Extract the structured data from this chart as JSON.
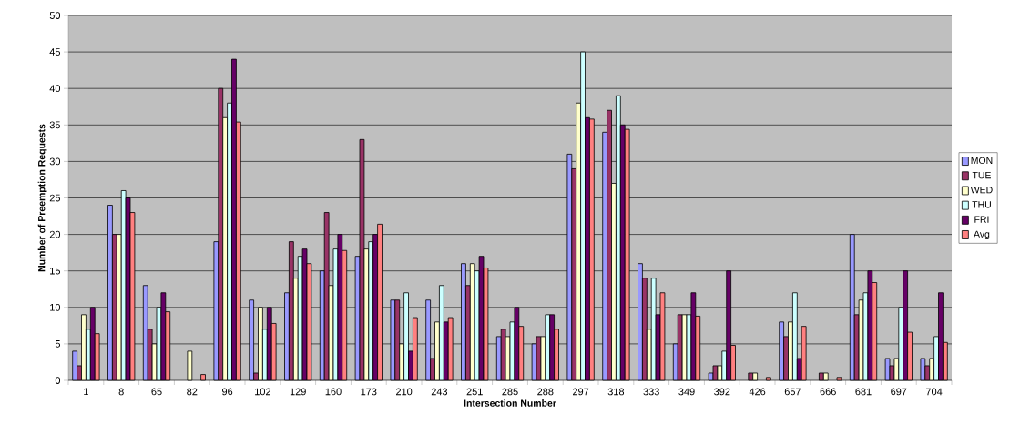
{
  "chart_data": {
    "type": "bar",
    "xlabel": "Intersection Number",
    "ylabel": "Number of Preemption Requests",
    "categories": [
      "1",
      "8",
      "65",
      "82",
      "96",
      "102",
      "129",
      "160",
      "173",
      "210",
      "243",
      "251",
      "285",
      "288",
      "297",
      "318",
      "333",
      "349",
      "392",
      "426",
      "657",
      "666",
      "681",
      "697",
      "704"
    ],
    "series": [
      {
        "name": "MON",
        "color": "#9999ff",
        "values": [
          4,
          24,
          13,
          null,
          19,
          11,
          12,
          15,
          17,
          11,
          11,
          16,
          6,
          5,
          31,
          34,
          16,
          5,
          1,
          null,
          8,
          null,
          20,
          3,
          3
        ]
      },
      {
        "name": "TUE",
        "color": "#993366",
        "values": [
          2,
          20,
          7,
          null,
          40,
          1,
          19,
          23,
          33,
          11,
          3,
          13,
          7,
          6,
          29,
          37,
          14,
          9,
          2,
          1,
          6,
          1,
          9,
          2,
          2
        ]
      },
      {
        "name": "WED",
        "color": "#ffffcc",
        "values": [
          9,
          20,
          5,
          4,
          36,
          10,
          14,
          13,
          18,
          5,
          8,
          16,
          6,
          6,
          38,
          27,
          7,
          9,
          2,
          1,
          8,
          1,
          11,
          3,
          3
        ]
      },
      {
        "name": "THU",
        "color": "#ccffff",
        "values": [
          7,
          26,
          10,
          null,
          38,
          7,
          17,
          18,
          19,
          12,
          13,
          15,
          8,
          9,
          45,
          39,
          14,
          9,
          4,
          null,
          12,
          null,
          12,
          10,
          6
        ]
      },
      {
        "name": "FRI",
        "color": "#660066",
        "values": [
          10,
          25,
          12,
          null,
          44,
          10,
          18,
          20,
          20,
          4,
          8,
          17,
          10,
          9,
          36,
          35,
          9,
          12,
          15,
          null,
          3,
          null,
          15,
          15,
          12
        ]
      },
      {
        "name": "Avg",
        "color": "#ff8080",
        "values": [
          6.4,
          23,
          9.4,
          0.8,
          35.4,
          7.8,
          16,
          17.8,
          21.4,
          8.6,
          8.6,
          15.4,
          7.4,
          7,
          35.8,
          34.4,
          12,
          8.8,
          4.8,
          0.4,
          7.4,
          0.4,
          13.4,
          6.6,
          5.2
        ]
      }
    ],
    "ylim": [
      0,
      50
    ],
    "yticks": [
      0,
      5,
      10,
      15,
      20,
      25,
      30,
      35,
      40,
      45,
      50
    ],
    "grid": "y",
    "legend": "right"
  }
}
